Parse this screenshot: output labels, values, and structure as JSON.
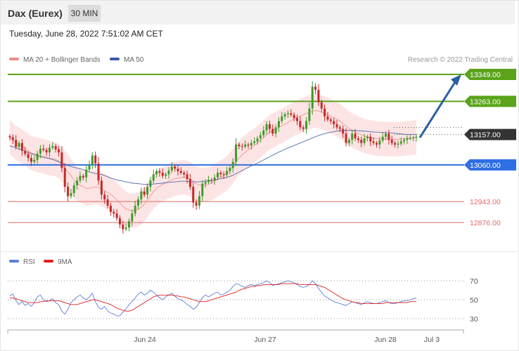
{
  "header": {
    "symbol": "Dax (Eurex)",
    "timeframe": "30 MIN",
    "datetime": "Tuesday, June 28, 2022 7:51:02 AM CET"
  },
  "legend": {
    "ma20_label": "MA 20 + Bollinger Bands",
    "ma50_label": "MA 50",
    "copyright": "Research © 2022 Trading Central",
    "rsi_label": "RSI",
    "rsi_ma_label": "9MA"
  },
  "colors": {
    "green_level": "#5aa31a",
    "blue_level": "#2f6fe4",
    "red_level": "#e36a6a",
    "current": "#333333",
    "bollinger_fill": "#fde4e4",
    "ma20": "#f08a8a",
    "ma50": "#3b5ba9",
    "candle_up": "#3f9b2c",
    "candle_down": "#c62828",
    "arrow": "#2d5fa3",
    "rsi": "#5a7fd8",
    "rsi_ma": "#e01e1e"
  },
  "chart_data": [
    {
      "type": "candlestick",
      "title": "Dax (Eurex)",
      "timeframe": "30 MIN",
      "x_ticks": [
        "Jun 24",
        "Jun 27",
        "Jun 28",
        "Jul 3"
      ],
      "levels": [
        {
          "value": 13349.0,
          "label": "13349.00",
          "kind": "resistance",
          "color": "#5aa31a"
        },
        {
          "value": 13263.0,
          "label": "13263.00",
          "kind": "resistance",
          "color": "#5aa31a"
        },
        {
          "value": 13157.0,
          "label": "13157.00",
          "kind": "current",
          "color": "#333333"
        },
        {
          "value": 13060.0,
          "label": "13060.00",
          "kind": "pivot",
          "color": "#2f6fe4"
        },
        {
          "value": 12943.0,
          "label": "12943.00",
          "kind": "support",
          "color": "#e36a6a"
        },
        {
          "value": 12876.0,
          "label": "12876.00",
          "kind": "support",
          "color": "#e36a6a"
        }
      ],
      "ylim": [
        12830,
        13360
      ],
      "closes": [
        13148,
        13140,
        13118,
        13130,
        13105,
        13095,
        13082,
        13070,
        13076,
        13096,
        13112,
        13108,
        13100,
        13115,
        13120,
        13110,
        13100,
        13050,
        12990,
        12960,
        12970,
        12995,
        13010,
        13025,
        13020,
        13045,
        13060,
        13090,
        13065,
        13010,
        12965,
        12950,
        12930,
        12910,
        12905,
        12890,
        12870,
        12855,
        12860,
        12880,
        12905,
        12930,
        12950,
        12975,
        12965,
        12990,
        13010,
        13030,
        13040,
        13035,
        13025,
        13030,
        13042,
        13055,
        13048,
        13040,
        13035,
        13030,
        13015,
        12990,
        12940,
        12930,
        12960,
        13000,
        13005,
        13012,
        13010,
        13020,
        13035,
        13030,
        13028,
        13040,
        13050,
        13070,
        13125,
        13120,
        13118,
        13125,
        13122,
        13130,
        13135,
        13145,
        13155,
        13170,
        13190,
        13175,
        13160,
        13180,
        13200,
        13215,
        13222,
        13225,
        13220,
        13210,
        13200,
        13180,
        13175,
        13200,
        13240,
        13310,
        13300,
        13260,
        13240,
        13215,
        13205,
        13200,
        13190,
        13180,
        13175,
        13160,
        13130,
        13140,
        13160,
        13145,
        13140,
        13130,
        13145,
        13150,
        13135,
        13130,
        13125,
        13138,
        13150,
        13160,
        13140,
        13130,
        13125,
        13128,
        13135,
        13140,
        13145,
        13145,
        13147,
        13150
      ],
      "ma20": [
        13150,
        13140,
        13130,
        13125,
        13118,
        13112,
        13105,
        13098,
        13095,
        13092,
        13090,
        13088,
        13085,
        13082,
        13080,
        13078,
        13072,
        13062,
        13050,
        13038,
        13025,
        13012,
        13000,
        12995,
        12990,
        12985,
        12985,
        12988,
        12990,
        12988,
        12983,
        12978,
        12972,
        12966,
        12958,
        12948,
        12938,
        12928,
        12920,
        12915,
        12914,
        12915,
        12918,
        12925,
        12935,
        12948,
        12962,
        12975,
        12985,
        12992,
        12998,
        13003,
        13008,
        13012,
        13016,
        13018,
        13020,
        13020,
        13018,
        13014,
        13008,
        13000,
        12996,
        12995,
        12996,
        12998,
        13002,
        13008,
        13014,
        13020,
        13026,
        13034,
        13044,
        13056,
        13070,
        13082,
        13092,
        13100,
        13108,
        13115,
        13122,
        13130,
        13138,
        13147,
        13156,
        13164,
        13170,
        13175,
        13180,
        13185,
        13190,
        13196,
        13202,
        13208,
        13212,
        13216,
        13220,
        13224,
        13228,
        13232,
        13234,
        13232,
        13228,
        13224,
        13220,
        13216,
        13211,
        13206,
        13200,
        13192,
        13184,
        13176,
        13170,
        13165,
        13160,
        13156,
        13152,
        13150,
        13148,
        13146,
        13144,
        13143,
        13143,
        13143,
        13142,
        13142,
        13142,
        13142,
        13143,
        13144,
        13145,
        13146,
        13147,
        13148
      ],
      "ma50": [
        13120,
        13118,
        13115,
        13112,
        13108,
        13104,
        13100,
        13096,
        13092,
        13089,
        13086,
        13084,
        13082,
        13080,
        13077,
        13074,
        13070,
        13066,
        13062,
        13058,
        13055,
        13052,
        13050,
        13048,
        13045,
        13042,
        13038,
        13035,
        13033,
        13031,
        13029,
        13026,
        13022,
        13018,
        13015,
        13012,
        13010,
        13008,
        13006,
        13004,
        13002,
        13001,
        13000,
        12999,
        12998,
        12998,
        12998,
        12999,
        13000,
        13001,
        13002,
        13003,
        13004,
        13005,
        13006,
        13007,
        13008,
        13008,
        13008,
        13007,
        13006,
        13006,
        13006,
        13007,
        13008,
        13009,
        13010,
        13012,
        13014,
        13016,
        13018,
        13020,
        13023,
        13027,
        13032,
        13037,
        13042,
        13047,
        13052,
        13057,
        13061,
        13066,
        13071,
        13076,
        13081,
        13086,
        13091,
        13096,
        13101,
        13105,
        13110,
        13114,
        13118,
        13122,
        13126,
        13130,
        13134,
        13138,
        13142,
        13146,
        13150,
        13154,
        13157,
        13160,
        13162,
        13164,
        13166,
        13168,
        13169,
        13170,
        13170,
        13170,
        13170,
        13170,
        13169,
        13168,
        13168,
        13167,
        13166,
        13165,
        13165,
        13164,
        13164,
        13163,
        13163,
        13162,
        13161,
        13160,
        13159,
        13158,
        13157,
        13157,
        13157,
        13157
      ],
      "bollinger_width": 55,
      "forecast_arrow": {
        "from": 13147,
        "to": 13349
      }
    },
    {
      "type": "line",
      "title": "RSI",
      "ylim": [
        20,
        80
      ],
      "y_ticks": [
        70,
        50,
        30
      ],
      "series": [
        {
          "name": "RSI",
          "values": [
            54,
            56,
            49,
            45,
            48,
            44,
            46,
            43,
            47,
            53,
            55,
            50,
            48,
            49,
            51,
            47,
            45,
            38,
            35,
            40,
            47,
            50,
            53,
            55,
            52,
            50,
            53,
            57,
            48,
            42,
            40,
            43,
            38,
            36,
            35,
            33,
            33,
            37,
            40,
            45,
            48,
            52,
            56,
            58,
            55,
            57,
            60,
            58,
            55,
            52,
            50,
            53,
            55,
            57,
            54,
            51,
            50,
            48,
            45,
            43,
            40,
            42,
            47,
            52,
            55,
            53,
            55,
            57,
            58,
            55,
            56,
            58,
            60,
            64,
            67,
            66,
            64,
            63,
            65,
            66,
            65,
            66,
            67,
            68,
            70,
            68,
            65,
            66,
            67,
            68,
            69,
            70,
            69,
            68,
            66,
            64,
            63,
            64,
            66,
            70,
            67,
            62,
            58,
            54,
            52,
            50,
            48,
            47,
            46,
            45,
            44,
            46,
            48,
            47,
            46,
            45,
            47,
            48,
            47,
            46,
            46,
            47,
            48,
            49,
            47,
            46,
            46,
            47,
            48,
            49,
            49,
            50,
            51,
            52
          ]
        },
        {
          "name": "9MA",
          "values": [
            52,
            52,
            51,
            50,
            49,
            48,
            47,
            47,
            47,
            47,
            48,
            48,
            49,
            49,
            49,
            49,
            49,
            48,
            47,
            46,
            45,
            45,
            45,
            46,
            47,
            48,
            49,
            50,
            50,
            49,
            48,
            47,
            46,
            45,
            43,
            41,
            40,
            39,
            38,
            38,
            39,
            41,
            43,
            45,
            47,
            49,
            51,
            53,
            54,
            55,
            55,
            55,
            55,
            55,
            54,
            54,
            53,
            53,
            52,
            51,
            50,
            49,
            48,
            48,
            48,
            49,
            50,
            51,
            52,
            53,
            54,
            55,
            56,
            57,
            58,
            60,
            61,
            62,
            63,
            64,
            64,
            65,
            65,
            66,
            66,
            66,
            66,
            66,
            66,
            67,
            67,
            67,
            67,
            67,
            67,
            66,
            66,
            66,
            66,
            66,
            66,
            65,
            64,
            63,
            61,
            59,
            57,
            55,
            53,
            51,
            50,
            49,
            48,
            47,
            47,
            46,
            46,
            46,
            46,
            46,
            46,
            46,
            46,
            47,
            47,
            47,
            47,
            47,
            47,
            47,
            47,
            48,
            48,
            48
          ]
        }
      ]
    }
  ]
}
